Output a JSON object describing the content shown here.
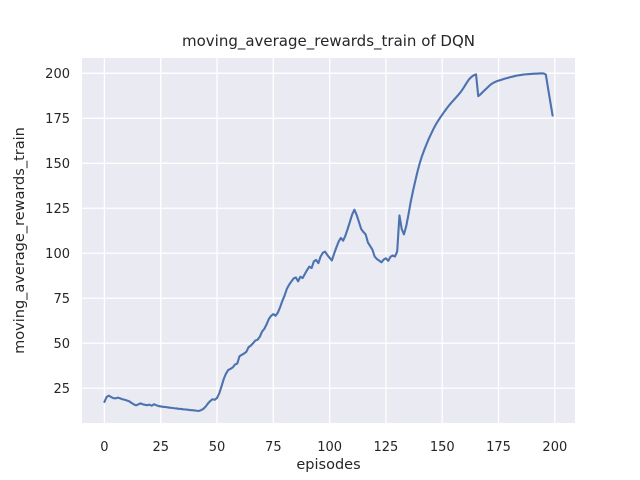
{
  "figure": {
    "background": "#ffffff"
  },
  "colors": {
    "axes_background": "#eaeaf2",
    "grid": "#ffffff",
    "line": "#4c72b0",
    "text": "#262626"
  },
  "chart_data": {
    "type": "line",
    "title": "moving_average_rewards_train of DQN",
    "xlabel": "episodes",
    "ylabel": "moving_average_rewards_train",
    "grid": true,
    "legend": "none",
    "x_ticks": [
      0,
      25,
      50,
      75,
      100,
      125,
      150,
      175,
      200
    ],
    "y_ticks": [
      25,
      50,
      75,
      100,
      125,
      150,
      175,
      200
    ],
    "xlim": [
      -9.95,
      208.95
    ],
    "ylim": [
      5.7,
      208.5
    ],
    "series": [
      {
        "name": "moving_average_rewards_train",
        "color": "#4c72b0",
        "x_start": 0,
        "x_step": 1,
        "values": [
          17.4,
          20.2,
          20.9,
          20.1,
          19.5,
          19.4,
          19.8,
          19.4,
          18.9,
          18.6,
          18.2,
          17.8,
          16.9,
          16.1,
          15.5,
          16.0,
          16.6,
          16.1,
          15.8,
          15.6,
          15.9,
          15.3,
          16.1,
          15.6,
          15.1,
          14.9,
          14.7,
          14.6,
          14.4,
          14.2,
          14.1,
          13.9,
          13.8,
          13.6,
          13.5,
          13.3,
          13.2,
          13.1,
          12.9,
          12.8,
          12.7,
          12.5,
          12.4,
          12.9,
          13.6,
          14.9,
          16.6,
          17.9,
          18.9,
          18.6,
          19.6,
          22.2,
          26.1,
          30.2,
          33.2,
          35.2,
          35.8,
          36.6,
          38.2,
          38.8,
          42.8,
          43.6,
          44.3,
          45.2,
          47.8,
          48.7,
          50.0,
          51.5,
          52.0,
          53.6,
          56.5,
          58.0,
          60.5,
          63.5,
          65.2,
          66.2,
          65.3,
          67.0,
          70.0,
          73.5,
          76.5,
          80.2,
          82.5,
          84.3,
          86.0,
          86.6,
          84.4,
          87.0,
          86.2,
          88.5,
          90.7,
          92.6,
          91.8,
          95.5,
          96.3,
          94.5,
          98.2,
          100.3,
          100.9,
          99.0,
          97.5,
          96.0,
          99.8,
          103.3,
          106.5,
          108.5,
          107.0,
          109.8,
          113.5,
          117.5,
          121.5,
          124.2,
          121.3,
          117.5,
          113.5,
          111.8,
          110.5,
          106.0,
          104.0,
          102.0,
          98.2,
          96.8,
          95.9,
          95.0,
          96.5,
          97.2,
          95.8,
          98.0,
          98.8,
          98.2,
          101.0,
          121.0,
          113.5,
          110.5,
          115.0,
          121.5,
          128.5,
          134.5,
          140.0,
          145.3,
          150.0,
          154.0,
          157.4,
          160.5,
          163.5,
          166.2,
          168.8,
          171.2,
          173.3,
          175.2,
          177.0,
          178.8,
          180.5,
          182.1,
          183.6,
          185.0,
          186.4,
          187.8,
          189.3,
          191.0,
          193.0,
          195.0,
          196.8,
          198.0,
          198.9,
          199.4,
          187.3,
          188.3,
          189.6,
          190.8,
          192.0,
          193.2,
          194.2,
          194.9,
          195.5,
          195.9,
          196.3,
          196.7,
          197.1,
          197.4,
          197.8,
          198.1,
          198.4,
          198.7,
          198.9,
          199.1,
          199.3,
          199.4,
          199.5,
          199.6,
          199.7,
          199.8,
          199.8,
          199.9,
          199.9,
          199.9,
          199.3,
          191.5,
          184.0,
          176.5
        ]
      }
    ]
  }
}
